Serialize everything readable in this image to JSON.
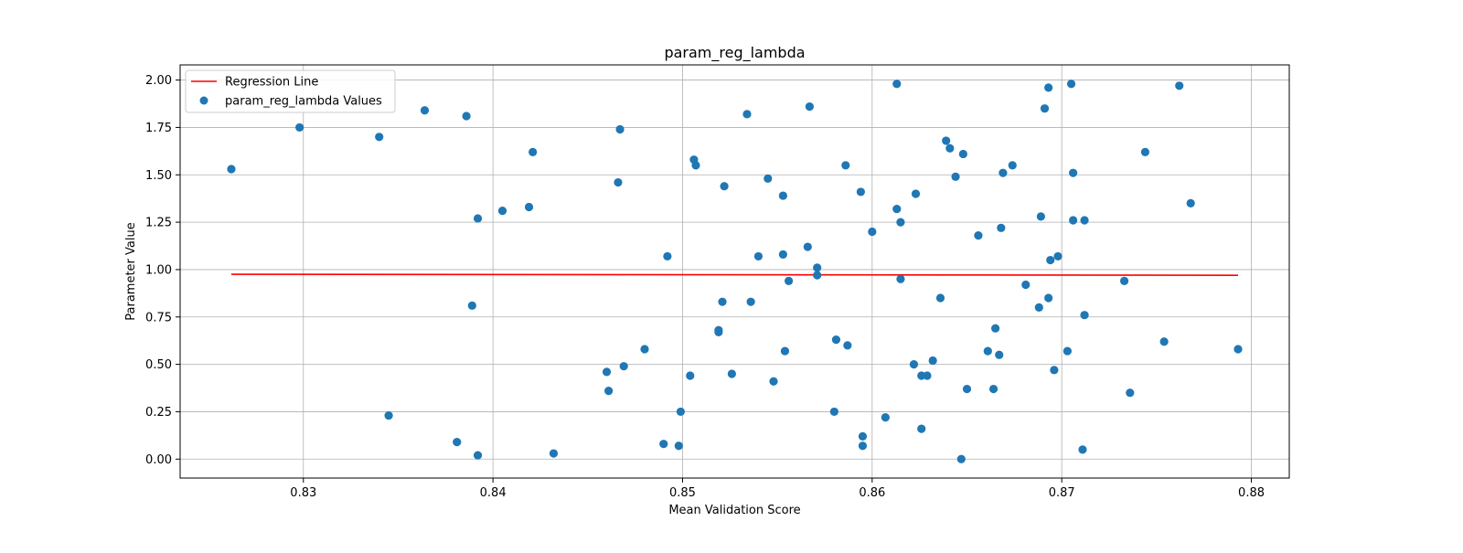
{
  "chart_data": {
    "type": "scatter",
    "title": "param_reg_lambda",
    "xlabel": "Mean Validation Score",
    "ylabel": "Parameter Value",
    "xlim": [
      0.8235,
      0.882
    ],
    "ylim": [
      -0.1,
      2.08
    ],
    "xticks": [
      0.83,
      0.84,
      0.85,
      0.86,
      0.87,
      0.88
    ],
    "xtick_labels": [
      "0.83",
      "0.84",
      "0.85",
      "0.86",
      "0.87",
      "0.88"
    ],
    "yticks": [
      0.0,
      0.25,
      0.5,
      0.75,
      1.0,
      1.25,
      1.5,
      1.75,
      2.0
    ],
    "ytick_labels": [
      "0.00",
      "0.25",
      "0.50",
      "0.75",
      "1.00",
      "1.25",
      "1.50",
      "1.75",
      "2.00"
    ],
    "grid": true,
    "legend_position": "top-left",
    "series": [
      {
        "name": "Regression Line",
        "kind": "line",
        "color": "#ff0000",
        "x": [
          0.8262,
          0.8793
        ],
        "y": [
          0.975,
          0.97
        ]
      },
      {
        "name": "param_reg_lambda Values",
        "kind": "scatter",
        "color": "#1f77b4",
        "x": [
          0.8262,
          0.8298,
          0.834,
          0.8345,
          0.8364,
          0.8381,
          0.8386,
          0.8389,
          0.8392,
          0.8392,
          0.8405,
          0.8419,
          0.8421,
          0.8432,
          0.846,
          0.8461,
          0.8466,
          0.8467,
          0.8469,
          0.848,
          0.849,
          0.8492,
          0.8498,
          0.8499,
          0.8504,
          0.8506,
          0.8507,
          0.8519,
          0.8519,
          0.8521,
          0.8522,
          0.8526,
          0.8534,
          0.8536,
          0.854,
          0.8545,
          0.8548,
          0.8553,
          0.8553,
          0.8554,
          0.8556,
          0.8566,
          0.8567,
          0.8571,
          0.8571,
          0.858,
          0.8581,
          0.8586,
          0.8587,
          0.8594,
          0.8595,
          0.8595,
          0.86,
          0.8607,
          0.8613,
          0.8613,
          0.8615,
          0.8615,
          0.8622,
          0.8623,
          0.8626,
          0.8626,
          0.8629,
          0.8632,
          0.8636,
          0.8639,
          0.8641,
          0.8644,
          0.8647,
          0.8648,
          0.865,
          0.8656,
          0.8661,
          0.8664,
          0.8665,
          0.8667,
          0.8668,
          0.8669,
          0.8674,
          0.8681,
          0.8688,
          0.8689,
          0.8691,
          0.8693,
          0.8693,
          0.8694,
          0.8696,
          0.8698,
          0.8703,
          0.8705,
          0.8706,
          0.8706,
          0.8711,
          0.8712,
          0.8712,
          0.8733,
          0.8736,
          0.8744,
          0.8754,
          0.8762,
          0.8768,
          0.8793
        ],
        "y": [
          1.53,
          1.75,
          1.7,
          0.23,
          1.84,
          0.09,
          1.81,
          0.81,
          1.27,
          0.02,
          1.31,
          1.33,
          1.62,
          0.03,
          0.46,
          0.36,
          1.46,
          1.74,
          0.49,
          0.58,
          0.08,
          1.07,
          0.07,
          0.25,
          0.44,
          1.58,
          1.55,
          0.68,
          0.67,
          0.83,
          1.44,
          0.45,
          1.82,
          0.83,
          1.07,
          1.48,
          0.41,
          1.39,
          1.08,
          0.57,
          0.94,
          1.12,
          1.86,
          1.01,
          0.97,
          0.25,
          0.63,
          1.55,
          0.6,
          1.41,
          0.12,
          0.07,
          1.2,
          0.22,
          1.32,
          1.98,
          1.25,
          0.95,
          0.5,
          1.4,
          0.44,
          0.16,
          0.44,
          0.52,
          0.85,
          1.68,
          1.64,
          1.49,
          0.0,
          1.61,
          0.37,
          1.18,
          0.57,
          0.37,
          0.69,
          0.55,
          1.22,
          1.51,
          1.55,
          0.92,
          0.8,
          1.28,
          1.85,
          0.85,
          1.96,
          1.05,
          0.47,
          1.07,
          0.57,
          1.98,
          1.51,
          1.26,
          0.05,
          1.26,
          0.76,
          0.94,
          0.35,
          1.62,
          0.62,
          1.97,
          1.35,
          0.58
        ]
      }
    ]
  }
}
